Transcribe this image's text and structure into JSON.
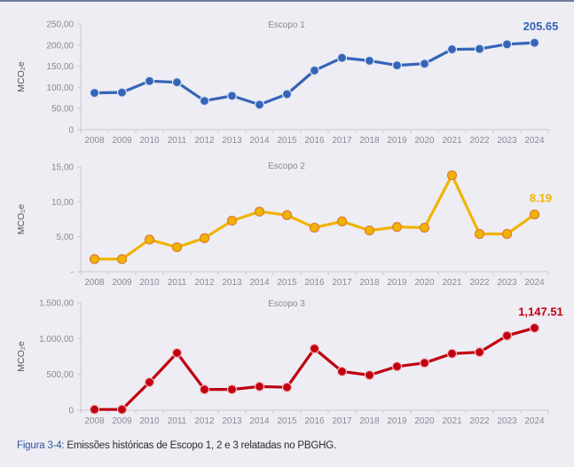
{
  "caption": {
    "label": "Figura 3-4:",
    "text": " Emissões históricas de Escopo 1, 2 e 3 relatadas no PBGHG."
  },
  "chart_data": [
    {
      "type": "line",
      "title": "Escopo 1",
      "xlabel": "",
      "ylabel": "MCO₂e",
      "categories": [
        "2008",
        "2009",
        "2010",
        "2011",
        "2012",
        "2013",
        "2014",
        "2015",
        "2016",
        "2017",
        "2018",
        "2019",
        "2020",
        "2021",
        "2022",
        "2023",
        "2024"
      ],
      "series": [
        {
          "name": "Escopo 1",
          "color": "#3565b8",
          "marker_fill": "#3565b8",
          "marker_stroke": "#dbe3f3",
          "values": [
            87,
            88,
            115,
            112,
            68,
            80,
            59,
            84,
            140,
            170,
            163,
            152,
            156,
            190,
            191,
            202,
            205.65
          ]
        }
      ],
      "ylim": [
        0,
        250
      ],
      "yticks": [
        0,
        50,
        100,
        150,
        200,
        250
      ],
      "ytick_labels": [
        "0",
        "50,00",
        "100,00",
        "150,00",
        "200,00",
        "250,00"
      ],
      "annotation": {
        "text": "205.65",
        "category": "2024",
        "color": "#3565b8"
      },
      "grid": false,
      "legend": "none"
    },
    {
      "type": "line",
      "title": "Escopo 2",
      "xlabel": "",
      "ylabel": "MCO₂e",
      "categories": [
        "2008",
        "2009",
        "2010",
        "2011",
        "2012",
        "2013",
        "2014",
        "2015",
        "2016",
        "2017",
        "2018",
        "2019",
        "2020",
        "2021",
        "2022",
        "2023",
        "2024"
      ],
      "series": [
        {
          "name": "Escopo 2",
          "color": "#f0b400",
          "marker_fill": "#f0b400",
          "marker_stroke": "#e07a3a",
          "values": [
            1.8,
            1.8,
            4.6,
            3.5,
            4.8,
            7.3,
            8.6,
            8.1,
            6.3,
            7.2,
            5.9,
            6.4,
            6.3,
            13.8,
            5.4,
            5.4,
            8.19
          ]
        }
      ],
      "ylim": [
        0,
        15
      ],
      "yticks": [
        0,
        5,
        10,
        15
      ],
      "ytick_labels": [
        "-",
        "5,00",
        "10,00",
        "15,00"
      ],
      "annotation": {
        "text": "8.19",
        "category": "2024",
        "color": "#f0b400"
      },
      "grid": false,
      "legend": "none"
    },
    {
      "type": "line",
      "title": "Escopo 3",
      "xlabel": "",
      "ylabel": "MCO₂e",
      "categories": [
        "2008",
        "2009",
        "2010",
        "2011",
        "2012",
        "2013",
        "2014",
        "2015",
        "2016",
        "2017",
        "2018",
        "2019",
        "2020",
        "2021",
        "2022",
        "2023",
        "2024"
      ],
      "series": [
        {
          "name": "Escopo 3",
          "color": "#c00010",
          "marker_fill": "#c00010",
          "marker_stroke": "#f2b6ba",
          "values": [
            10,
            10,
            390,
            800,
            290,
            290,
            330,
            320,
            860,
            540,
            490,
            610,
            660,
            790,
            810,
            1040,
            1147.51
          ]
        }
      ],
      "ylim": [
        0,
        1500
      ],
      "yticks": [
        0,
        500,
        1000,
        1500
      ],
      "ytick_labels": [
        "0",
        "500,00",
        "1.000,00",
        "1.500,00"
      ],
      "annotation": {
        "text": "1,147.51",
        "category": "2024",
        "color": "#c00010"
      },
      "grid": false,
      "legend": "none"
    }
  ]
}
